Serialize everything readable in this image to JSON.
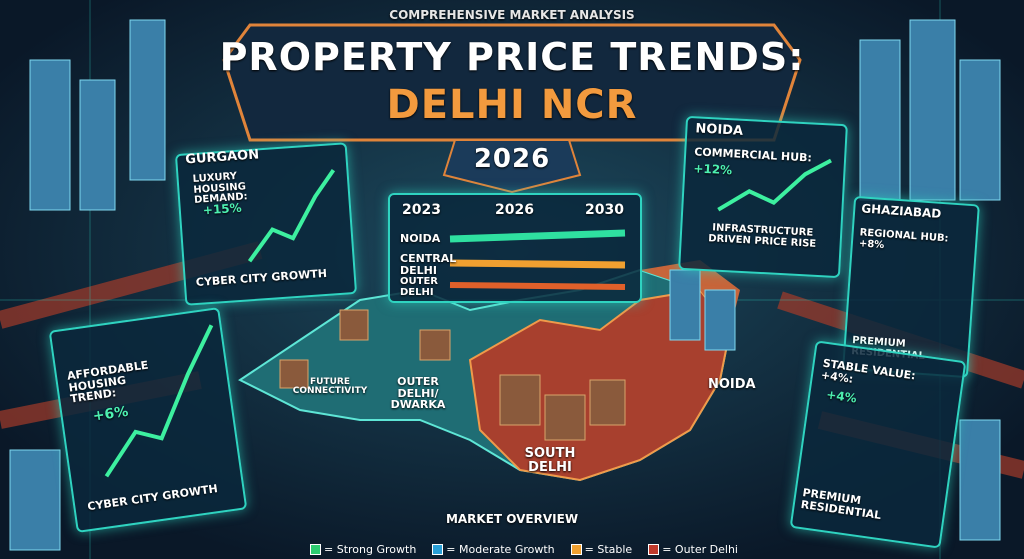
{
  "header": {
    "kicker": "COMPREHENSIVE MARKET ANALYSIS",
    "title": "PROPERTY PRICE TRENDS:",
    "region": "DELHI NCR",
    "year": "2026"
  },
  "timeline": {
    "years": [
      "2023",
      "2026",
      "2030"
    ],
    "rows": [
      "NOIDA",
      "CENTRAL DELHI",
      "OUTER DELHI"
    ]
  },
  "panels": [
    {
      "heading": "GURGAON",
      "label": "LUXURY HOUSING DEMAND:",
      "value": "+15%",
      "footer": "CYBER CITY GROWTH"
    },
    {
      "label": "AFFORDABLE HOUSING TREND:",
      "value": "+6%",
      "footer": "CYBER CITY GROWTH"
    },
    {
      "heading": "NOIDA",
      "label": "COMMERCIAL HUB:",
      "value": "+12%",
      "footer": "INFRASTRUCTURE DRIVEN PRICE RISE"
    },
    {
      "heading": "GHAZIABAD",
      "label": "REGIONAL HUB: +8%",
      "footer": "PREMIUM RESIDENTIAL"
    },
    {
      "label": "STABLE VALUE: +4%:",
      "value": "+4%",
      "footer": "PREMIUM RESIDENTIAL"
    }
  ],
  "map_labels": [
    "FUTURE CONNECTIVITY",
    "OUTER DELHI/ DWARKA",
    "NOIDA",
    "SOUTH DELHI"
  ],
  "overview": {
    "title": "MARKET OVERVIEW",
    "legend": [
      {
        "label": "= Strong Growth",
        "color": "#2ecc71"
      },
      {
        "label": "= Moderate Growth",
        "color": "#2a9fd6"
      },
      {
        "label": "= Stable",
        "color": "#f0a030"
      },
      {
        "label": "= Outer Delhi",
        "color": "#c0392b"
      }
    ]
  }
}
